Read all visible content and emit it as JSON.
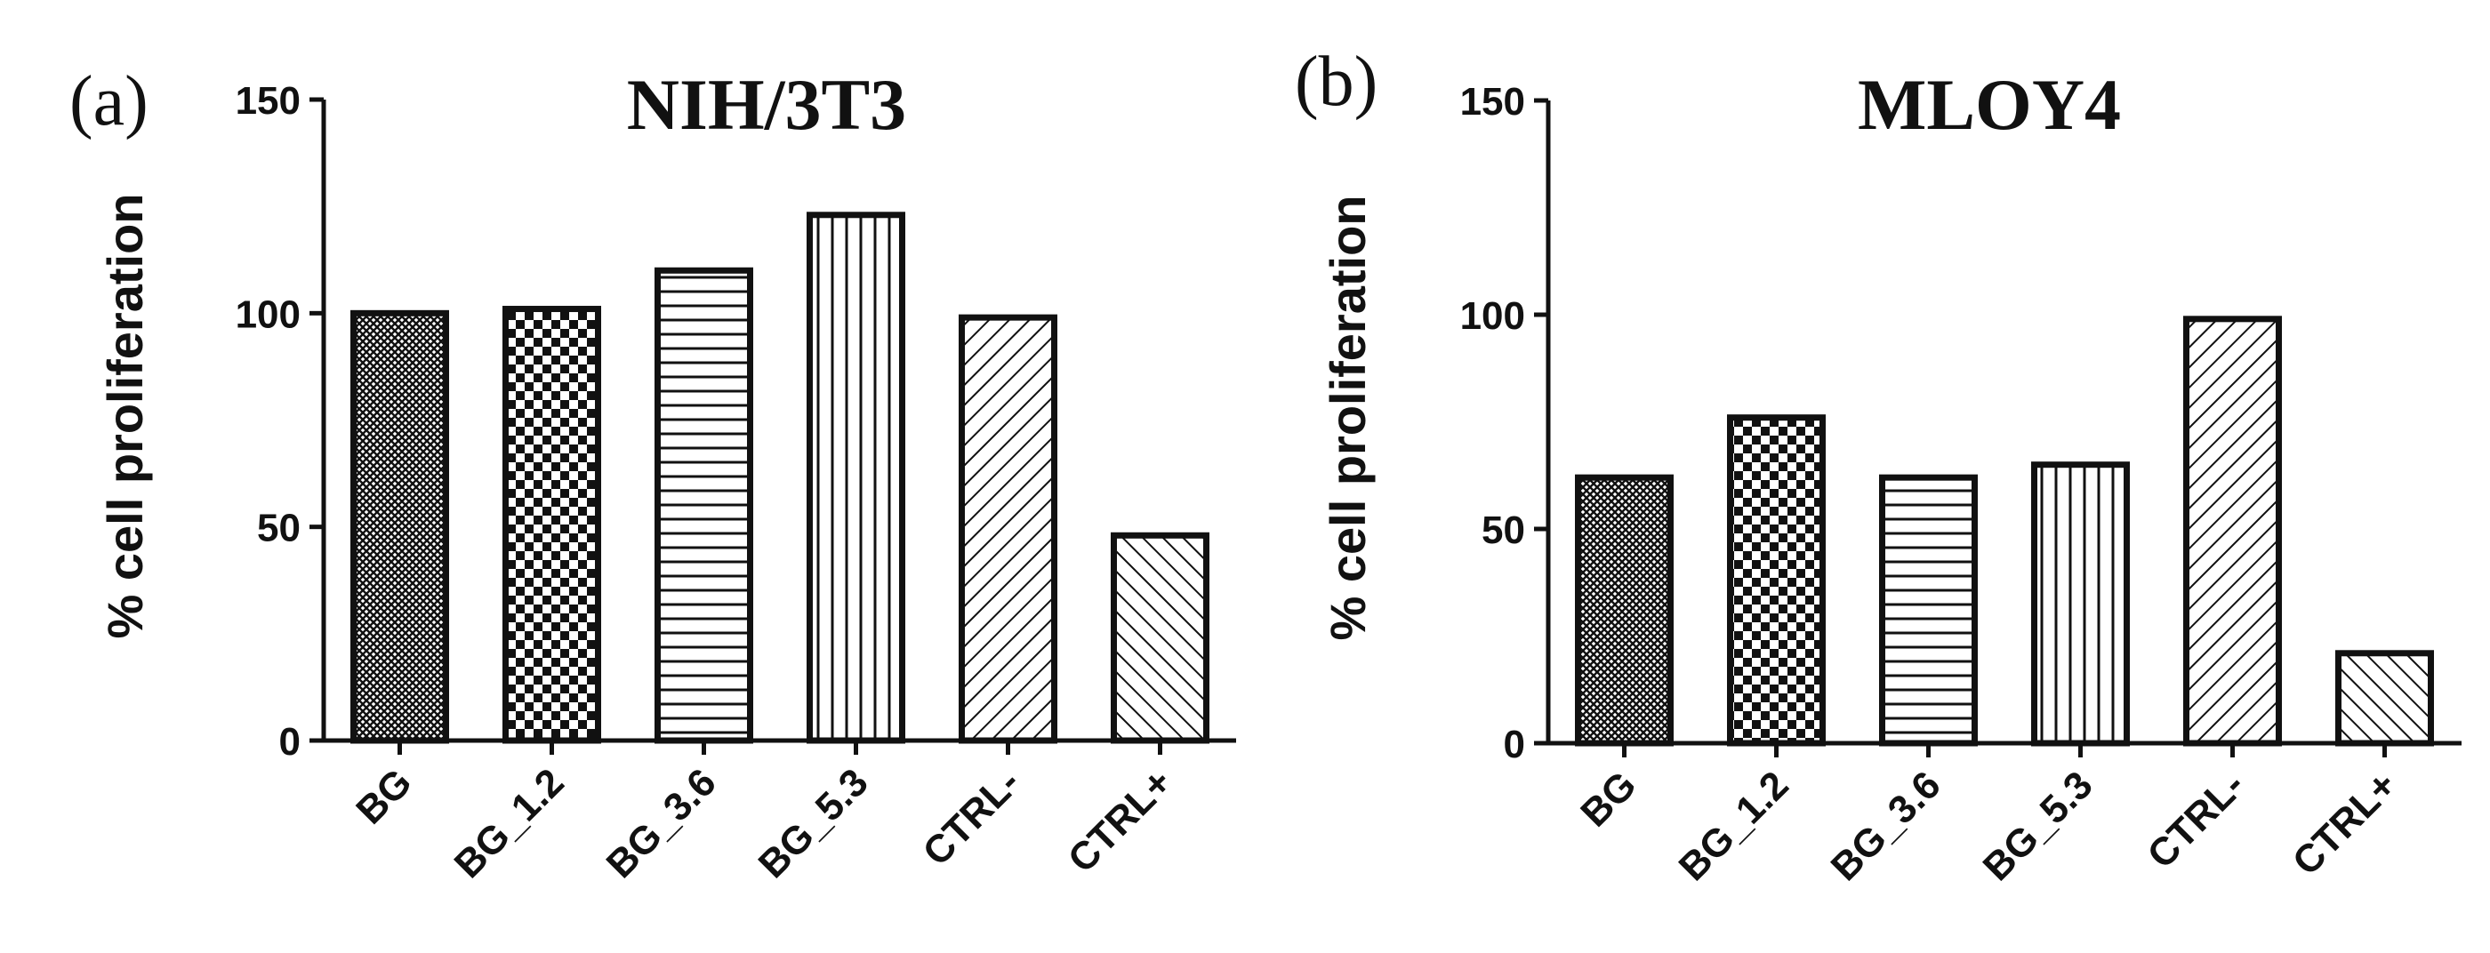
{
  "chart_data": [
    {
      "type": "bar",
      "panel": "(a)",
      "title": "NIH/3T3",
      "ylabel": "% cell proliferation",
      "xlabel": "",
      "ylim": [
        0,
        150
      ],
      "yticks": [
        "0",
        "50",
        "100",
        "150"
      ],
      "categories": [
        "BG",
        "BG_1.2",
        "BG_3.6",
        "BG_5.3",
        "CTRL-",
        "CTRL+"
      ],
      "values": [
        100,
        101,
        110,
        123,
        99,
        48
      ],
      "patterns": [
        "crosshatch",
        "checker",
        "horizontal",
        "vertical",
        "diagonal-up",
        "diagonal-down"
      ],
      "grid": false,
      "legend": "none"
    },
    {
      "type": "bar",
      "panel": "(b)",
      "title": "MLOY4",
      "ylabel": "% cell proliferation",
      "xlabel": "",
      "ylim": [
        0,
        150
      ],
      "yticks": [
        "0",
        "50",
        "100",
        "150"
      ],
      "categories": [
        "BG",
        "BG_1.2",
        "BG_3.6",
        "BG_5.3",
        "CTRL-",
        "CTRL+"
      ],
      "values": [
        62,
        76,
        62,
        65,
        99,
        21
      ],
      "patterns": [
        "crosshatch",
        "checker",
        "horizontal",
        "vertical",
        "diagonal-up",
        "diagonal-down"
      ],
      "grid": false,
      "legend": "none"
    }
  ]
}
